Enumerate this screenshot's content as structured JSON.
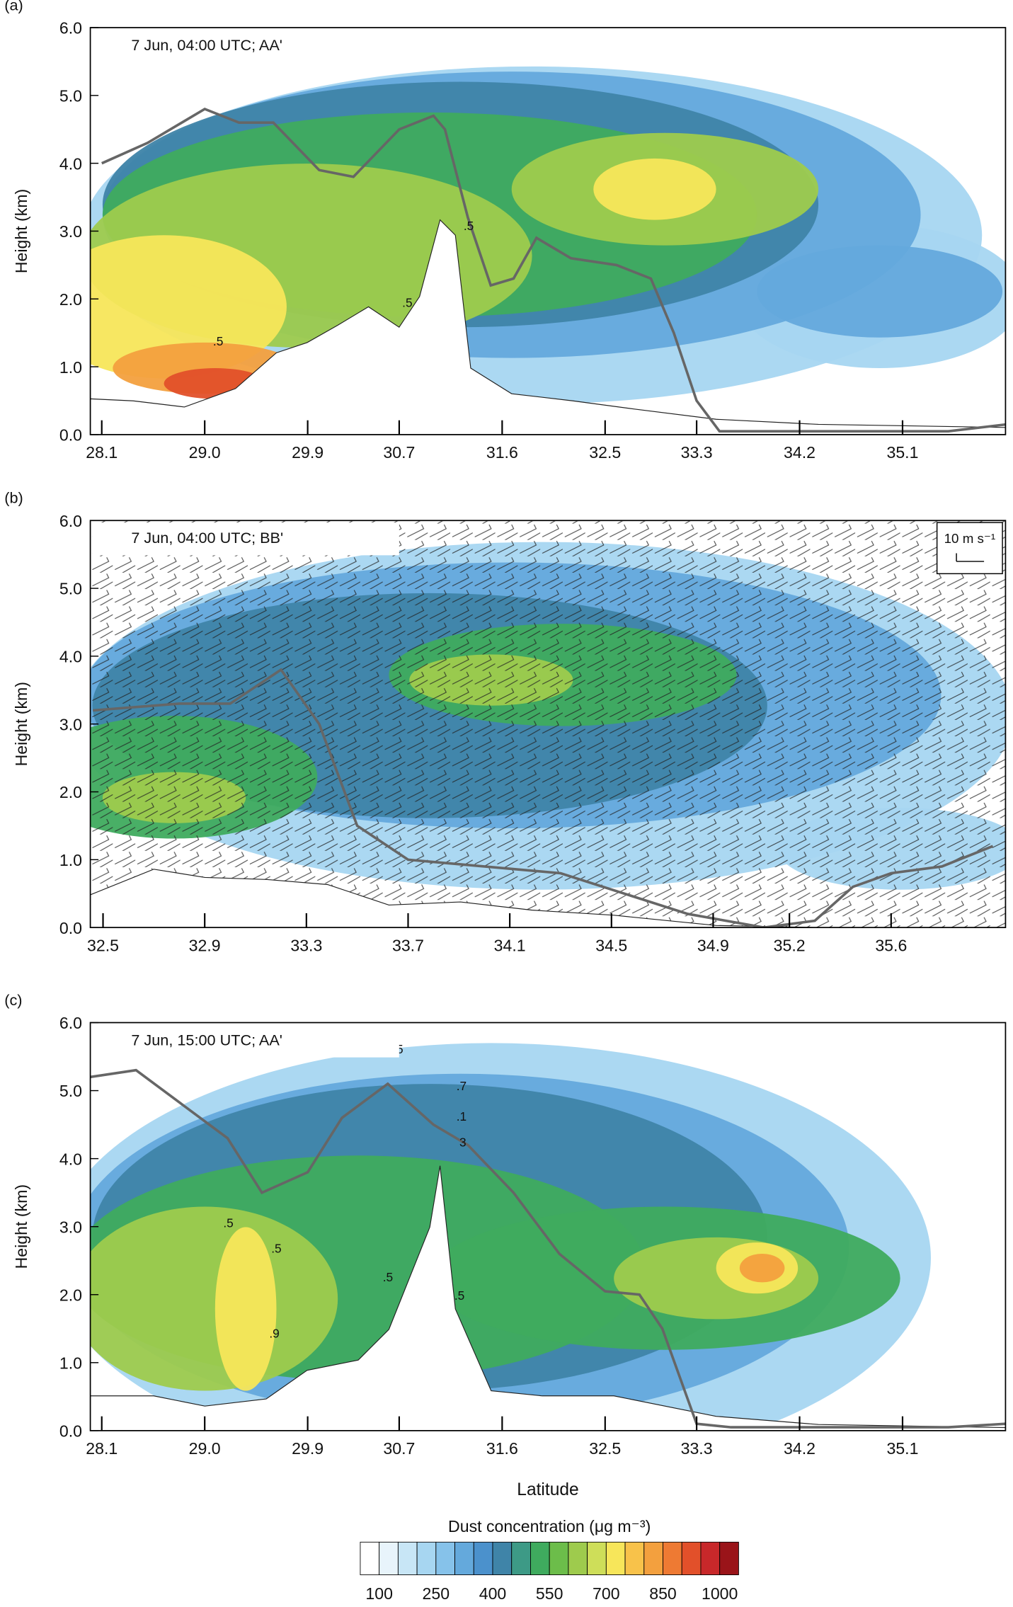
{
  "chart_data": [
    {
      "type": "contour",
      "panel_label": "(a)",
      "annotation": "7 Jun, 04:00 UTC; AA'",
      "ylabel": "Height (km)",
      "xlim": [
        28.0,
        36.0
      ],
      "ylim": [
        0,
        6
      ],
      "xticks": [
        28.1,
        {
          "value": 29,
          "label": "29.0"
        },
        29.9,
        30.7,
        31.6,
        32.5,
        33.3,
        34.2,
        35.1
      ],
      "yticks": [
        {
          "value": 0,
          "label": "0.0"
        },
        {
          "value": 1,
          "label": "1.0"
        },
        {
          "value": 2,
          "label": "2.0"
        },
        {
          "value": 3,
          "label": "3.0"
        },
        {
          "value": 4,
          "label": "4.0"
        },
        {
          "value": 5,
          "label": "5.0"
        },
        {
          "value": 6,
          "label": "6.0"
        }
      ],
      "line": {
        "color": "#666666",
        "x": [
          28.1,
          28.5,
          29.0,
          29.3,
          29.6,
          30.0,
          30.3,
          30.7,
          31.0,
          31.1,
          31.3,
          31.5,
          31.7,
          31.9,
          32.2,
          32.6,
          32.9,
          33.1,
          33.3,
          33.5,
          34.0,
          35.5,
          36.0
        ],
        "y": [
          4.0,
          4.3,
          4.8,
          4.6,
          4.6,
          3.9,
          3.8,
          4.5,
          4.7,
          4.5,
          3.2,
          2.2,
          2.3,
          2.9,
          2.6,
          2.5,
          2.3,
          1.5,
          0.5,
          0.05,
          0.05,
          0.05,
          0.15
        ]
      },
      "contour_labels": [
        ".5",
        ".5",
        ".5"
      ]
    },
    {
      "type": "contour",
      "panel_label": "(b)",
      "annotation": "7 Jun, 04:00 UTC; BB'",
      "ylabel": "Height (km)",
      "wind_key": "10 m s⁻¹",
      "xlim": [
        32.45,
        36.05
      ],
      "ylim": [
        0,
        6
      ],
      "xticks": [
        32.5,
        32.9,
        33.3,
        33.7,
        34.1,
        34.5,
        34.9,
        35.2,
        35.6
      ],
      "yticks": [
        {
          "value": 0,
          "label": "0.0"
        },
        {
          "value": 1,
          "label": "1.0"
        },
        {
          "value": 2,
          "label": "2.0"
        },
        {
          "value": 3,
          "label": "3.0"
        },
        {
          "value": 4,
          "label": "4.0"
        },
        {
          "value": 5,
          "label": "5.0"
        },
        {
          "value": 6,
          "label": "6.0"
        }
      ],
      "line": {
        "color": "#666666",
        "x": [
          32.46,
          32.8,
          33.0,
          33.2,
          33.35,
          33.5,
          33.7,
          34.3,
          34.8,
          35.1,
          35.3,
          35.45,
          35.6,
          35.8,
          36.0
        ],
        "y": [
          3.2,
          3.3,
          3.3,
          3.8,
          3.0,
          1.5,
          1.0,
          0.8,
          0.2,
          0.0,
          0.1,
          0.6,
          0.8,
          0.9,
          1.2
        ]
      },
      "contour_labels": []
    },
    {
      "type": "contour",
      "panel_label": "(c)",
      "annotation": "7 Jun, 15:00 UTC; AA'",
      "ylabel": "Height (km)",
      "xlabel": "Latitude",
      "xlim": [
        28.0,
        36.0
      ],
      "ylim": [
        0,
        6
      ],
      "xticks": [
        28.1,
        {
          "value": 29,
          "label": "29.0"
        },
        29.9,
        30.7,
        31.6,
        32.5,
        33.3,
        34.2,
        35.1
      ],
      "yticks": [
        {
          "value": 0,
          "label": "0.0"
        },
        {
          "value": 1,
          "label": "1.0"
        },
        {
          "value": 2,
          "label": "2.0"
        },
        {
          "value": 3,
          "label": "3.0"
        },
        {
          "value": 4,
          "label": "4.0"
        },
        {
          "value": 5,
          "label": "5.0"
        },
        {
          "value": 6,
          "label": "6.0"
        }
      ],
      "line": {
        "color": "#666666",
        "x": [
          28.0,
          28.4,
          28.8,
          29.2,
          29.5,
          29.9,
          30.2,
          30.6,
          31.0,
          31.3,
          31.7,
          32.1,
          32.5,
          32.8,
          33.0,
          33.3,
          33.6,
          35.5,
          36.0
        ],
        "y": [
          5.2,
          5.3,
          4.8,
          4.3,
          3.5,
          3.8,
          4.6,
          5.1,
          4.5,
          4.2,
          3.5,
          2.6,
          2.05,
          2.0,
          1.5,
          0.1,
          0.05,
          0.05,
          0.1
        ]
      },
      "contour_labels": [
        ".5",
        ".5",
        ".5",
        ".5",
        ".5",
        ".9",
        ".7",
        ".1",
        "3"
      ]
    }
  ],
  "colorbar": {
    "title": "Dust concentration (μg m⁻³)",
    "lim": [
      50,
      1050
    ],
    "ticks": [
      100,
      250,
      400,
      550,
      700,
      850,
      1000
    ],
    "colors": [
      "#ffffff",
      "#e8f4fb",
      "#c8e6f6",
      "#a7d6f1",
      "#86c2ea",
      "#64a9dc",
      "#4b91cc",
      "#3f84a8",
      "#3d9a86",
      "#3fab5e",
      "#6cbd4a",
      "#9ecb4d",
      "#cede59",
      "#f7e65a",
      "#f8c24a",
      "#f3a03e",
      "#ee7a33",
      "#e2502a",
      "#c8282a",
      "#9a1419"
    ]
  }
}
